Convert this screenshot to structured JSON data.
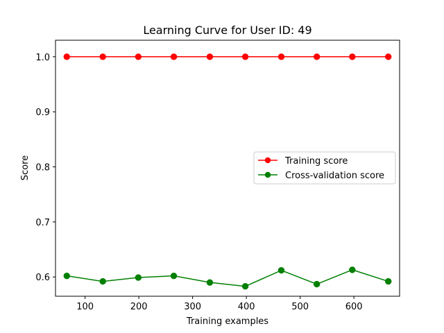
{
  "chart_data": {
    "type": "line",
    "title": "Learning Curve for User ID: 49",
    "xlabel": "Training examples",
    "ylabel": "Score",
    "x": [
      66,
      133,
      199,
      265,
      332,
      398,
      465,
      531,
      597,
      664
    ],
    "xlim": [
      45,
      685
    ],
    "ylim": [
      0.565,
      1.03
    ],
    "xticks": [
      100,
      200,
      300,
      400,
      500,
      600
    ],
    "xtick_labels": [
      "100",
      "200",
      "300",
      "400",
      "500",
      "600"
    ],
    "yticks": [
      0.6,
      0.7,
      0.8,
      0.9,
      1.0
    ],
    "ytick_labels": [
      "0.6",
      "0.7",
      "0.8",
      "0.9",
      "1.0"
    ],
    "grid": false,
    "legend_position": "center-right",
    "series": [
      {
        "name": "Training score",
        "color": "#ff0000",
        "marker": "o",
        "values": [
          1.0,
          1.0,
          1.0,
          1.0,
          1.0,
          1.0,
          1.0,
          1.0,
          1.0,
          1.0
        ]
      },
      {
        "name": "Cross-validation score",
        "color": "#008000",
        "marker": "o",
        "values": [
          0.602,
          0.592,
          0.599,
          0.602,
          0.59,
          0.583,
          0.612,
          0.587,
          0.613,
          0.592
        ]
      }
    ]
  }
}
